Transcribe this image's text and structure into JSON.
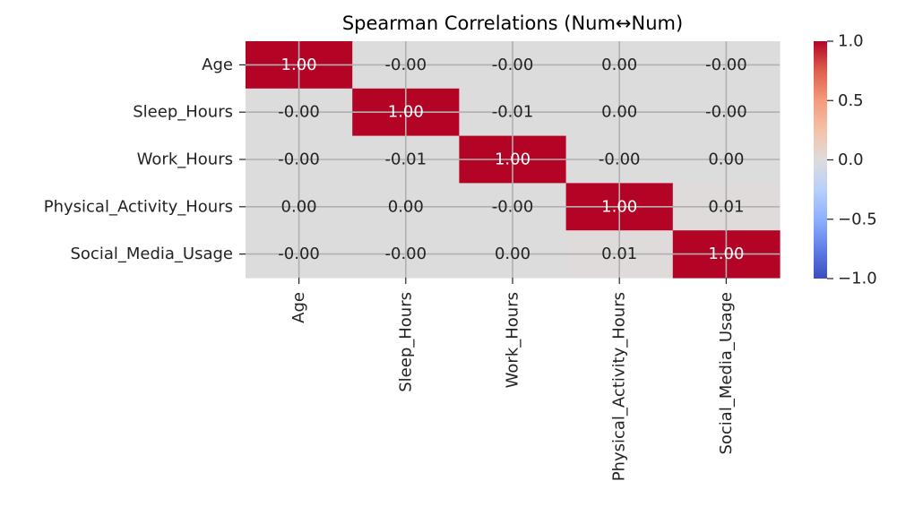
{
  "chart_data": {
    "type": "heatmap",
    "title": "Spearman Correlations (Num↔Num)",
    "rows": [
      "Age",
      "Sleep_Hours",
      "Work_Hours",
      "Physical_Activity_Hours",
      "Social_Media_Usage"
    ],
    "columns": [
      "Age",
      "Sleep_Hours",
      "Work_Hours",
      "Physical_Activity_Hours",
      "Social_Media_Usage"
    ],
    "values": [
      [
        1.0,
        -0.0,
        -0.0,
        0.0,
        -0.0
      ],
      [
        -0.0,
        1.0,
        -0.01,
        0.0,
        -0.0
      ],
      [
        -0.0,
        -0.01,
        1.0,
        -0.0,
        0.0
      ],
      [
        0.0,
        0.0,
        -0.0,
        1.0,
        0.01
      ],
      [
        -0.0,
        -0.0,
        0.0,
        0.01,
        1.0
      ]
    ],
    "labels": [
      [
        "1.00",
        "-0.00",
        "-0.00",
        "0.00",
        "-0.00"
      ],
      [
        "-0.00",
        "1.00",
        "-0.01",
        "0.00",
        "-0.00"
      ],
      [
        "-0.00",
        "-0.01",
        "1.00",
        "-0.00",
        "0.00"
      ],
      [
        "0.00",
        "0.00",
        "-0.00",
        "1.00",
        "0.01"
      ],
      [
        "-0.00",
        "-0.00",
        "0.00",
        "0.01",
        "1.00"
      ]
    ],
    "colormap": "coolwarm",
    "vmin": -1.0,
    "vmax": 1.0,
    "colorbar_ticks": [
      1.0,
      0.5,
      0.0,
      -0.5,
      -1.0
    ],
    "colorbar_labels": [
      "1.0",
      "0.5",
      "0.0",
      "−0.5",
      "−1.0"
    ],
    "grid": true,
    "colors": {
      "max": "#b40426",
      "mid": "#dddcdc",
      "min": "#3b4cc0"
    }
  }
}
